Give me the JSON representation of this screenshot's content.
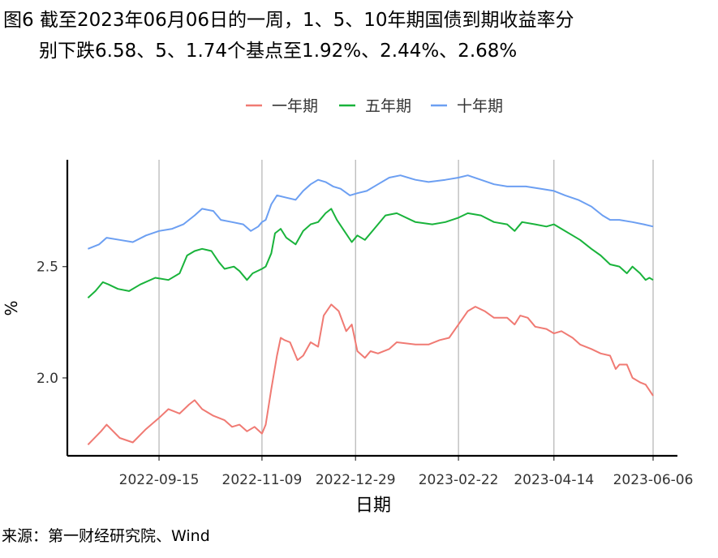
{
  "title_line1": "图6  截至2023年06月06日的一周，1、5、10年期国债到期收益率分",
  "title_line2": "别下跌6.58、5、1.74个基点至1.92%、2.44%、2.68%",
  "source": "来源：第一财经研究院、Wind",
  "colors": {
    "one_year": "#F07A73",
    "five_year": "#19B33B",
    "ten_year": "#6C9FF2",
    "grid": "#b3b3b3"
  },
  "chart_data": {
    "type": "line",
    "xlabel": "日期",
    "ylabel": "%",
    "x_ticks": [
      "2022-09-15",
      "2022-11-09",
      "2022-12-29",
      "2023-02-22",
      "2023-04-14",
      "2023-06-06"
    ],
    "y_ticks": [
      2.0,
      2.5
    ],
    "ylim": [
      1.65,
      2.98
    ],
    "xlim": [
      "2022-07-28",
      "2023-06-19"
    ],
    "grid": "vertical major",
    "legend_position": "top",
    "series": [
      {
        "name": "一年期",
        "color": "#F07A73",
        "points": [
          [
            "2022-08-08",
            1.7
          ],
          [
            "2022-08-15",
            1.76
          ],
          [
            "2022-08-18",
            1.79
          ],
          [
            "2022-08-25",
            1.73
          ],
          [
            "2022-09-01",
            1.71
          ],
          [
            "2022-09-08",
            1.77
          ],
          [
            "2022-09-15",
            1.82
          ],
          [
            "2022-09-20",
            1.86
          ],
          [
            "2022-09-26",
            1.84
          ],
          [
            "2022-10-01",
            1.88
          ],
          [
            "2022-10-04",
            1.9
          ],
          [
            "2022-10-08",
            1.86
          ],
          [
            "2022-10-14",
            1.83
          ],
          [
            "2022-10-20",
            1.81
          ],
          [
            "2022-10-24",
            1.78
          ],
          [
            "2022-10-28",
            1.79
          ],
          [
            "2022-11-01",
            1.76
          ],
          [
            "2022-11-05",
            1.78
          ],
          [
            "2022-11-09",
            1.75
          ],
          [
            "2022-11-11",
            1.79
          ],
          [
            "2022-11-14",
            1.95
          ],
          [
            "2022-11-17",
            2.1
          ],
          [
            "2022-11-19",
            2.18
          ],
          [
            "2022-11-21",
            2.17
          ],
          [
            "2022-11-24",
            2.16
          ],
          [
            "2022-11-28",
            2.08
          ],
          [
            "2022-12-01",
            2.1
          ],
          [
            "2022-12-05",
            2.16
          ],
          [
            "2022-12-09",
            2.14
          ],
          [
            "2022-12-12",
            2.28
          ],
          [
            "2022-12-16",
            2.33
          ],
          [
            "2022-12-20",
            2.3
          ],
          [
            "2022-12-24",
            2.21
          ],
          [
            "2022-12-27",
            2.24
          ],
          [
            "2022-12-30",
            2.12
          ],
          [
            "2023-01-03",
            2.09
          ],
          [
            "2023-01-06",
            2.12
          ],
          [
            "2023-01-10",
            2.11
          ],
          [
            "2023-01-16",
            2.13
          ],
          [
            "2023-01-20",
            2.16
          ],
          [
            "2023-01-30",
            2.15
          ],
          [
            "2023-02-06",
            2.15
          ],
          [
            "2023-02-12",
            2.17
          ],
          [
            "2023-02-17",
            2.18
          ],
          [
            "2023-02-22",
            2.24
          ],
          [
            "2023-02-27",
            2.3
          ],
          [
            "2023-03-03",
            2.32
          ],
          [
            "2023-03-08",
            2.3
          ],
          [
            "2023-03-13",
            2.27
          ],
          [
            "2023-03-20",
            2.27
          ],
          [
            "2023-03-24",
            2.24
          ],
          [
            "2023-03-27",
            2.28
          ],
          [
            "2023-03-31",
            2.27
          ],
          [
            "2023-04-04",
            2.23
          ],
          [
            "2023-04-10",
            2.22
          ],
          [
            "2023-04-14",
            2.2
          ],
          [
            "2023-04-18",
            2.21
          ],
          [
            "2023-04-24",
            2.18
          ],
          [
            "2023-04-28",
            2.15
          ],
          [
            "2023-05-04",
            2.13
          ],
          [
            "2023-05-09",
            2.11
          ],
          [
            "2023-05-14",
            2.1
          ],
          [
            "2023-05-17",
            2.04
          ],
          [
            "2023-05-19",
            2.06
          ],
          [
            "2023-05-23",
            2.06
          ],
          [
            "2023-05-26",
            2.0
          ],
          [
            "2023-05-30",
            1.98
          ],
          [
            "2023-06-02",
            1.97
          ],
          [
            "2023-06-06",
            1.92
          ]
        ]
      },
      {
        "name": "五年期",
        "color": "#19B33B",
        "points": [
          [
            "2022-08-08",
            2.36
          ],
          [
            "2022-08-12",
            2.39
          ],
          [
            "2022-08-16",
            2.43
          ],
          [
            "2022-08-19",
            2.42
          ],
          [
            "2022-08-24",
            2.4
          ],
          [
            "2022-08-30",
            2.39
          ],
          [
            "2022-09-05",
            2.42
          ],
          [
            "2022-09-13",
            2.45
          ],
          [
            "2022-09-20",
            2.44
          ],
          [
            "2022-09-26",
            2.47
          ],
          [
            "2022-09-30",
            2.55
          ],
          [
            "2022-10-04",
            2.57
          ],
          [
            "2022-10-08",
            2.58
          ],
          [
            "2022-10-13",
            2.57
          ],
          [
            "2022-10-17",
            2.52
          ],
          [
            "2022-10-20",
            2.49
          ],
          [
            "2022-10-25",
            2.5
          ],
          [
            "2022-10-28",
            2.48
          ],
          [
            "2022-11-01",
            2.44
          ],
          [
            "2022-11-04",
            2.47
          ],
          [
            "2022-11-09",
            2.49
          ],
          [
            "2022-11-11",
            2.5
          ],
          [
            "2022-11-14",
            2.56
          ],
          [
            "2022-11-16",
            2.65
          ],
          [
            "2022-11-19",
            2.67
          ],
          [
            "2022-11-22",
            2.63
          ],
          [
            "2022-11-27",
            2.6
          ],
          [
            "2022-12-01",
            2.66
          ],
          [
            "2022-12-05",
            2.69
          ],
          [
            "2022-12-09",
            2.7
          ],
          [
            "2022-12-13",
            2.74
          ],
          [
            "2022-12-16",
            2.76
          ],
          [
            "2022-12-19",
            2.71
          ],
          [
            "2022-12-23",
            2.66
          ],
          [
            "2022-12-27",
            2.61
          ],
          [
            "2022-12-30",
            2.64
          ],
          [
            "2023-01-03",
            2.62
          ],
          [
            "2023-01-08",
            2.67
          ],
          [
            "2023-01-14",
            2.73
          ],
          [
            "2023-01-20",
            2.74
          ],
          [
            "2023-01-30",
            2.7
          ],
          [
            "2023-02-08",
            2.69
          ],
          [
            "2023-02-15",
            2.7
          ],
          [
            "2023-02-22",
            2.72
          ],
          [
            "2023-02-27",
            2.74
          ],
          [
            "2023-03-06",
            2.73
          ],
          [
            "2023-03-13",
            2.7
          ],
          [
            "2023-03-20",
            2.69
          ],
          [
            "2023-03-24",
            2.66
          ],
          [
            "2023-03-28",
            2.7
          ],
          [
            "2023-04-04",
            2.69
          ],
          [
            "2023-04-10",
            2.68
          ],
          [
            "2023-04-14",
            2.69
          ],
          [
            "2023-04-18",
            2.67
          ],
          [
            "2023-04-24",
            2.64
          ],
          [
            "2023-04-28",
            2.62
          ],
          [
            "2023-05-04",
            2.58
          ],
          [
            "2023-05-09",
            2.55
          ],
          [
            "2023-05-14",
            2.51
          ],
          [
            "2023-05-19",
            2.5
          ],
          [
            "2023-05-23",
            2.47
          ],
          [
            "2023-05-26",
            2.5
          ],
          [
            "2023-05-30",
            2.47
          ],
          [
            "2023-06-02",
            2.44
          ],
          [
            "2023-06-04",
            2.45
          ],
          [
            "2023-06-06",
            2.44
          ]
        ]
      },
      {
        "name": "十年期",
        "color": "#6C9FF2",
        "points": [
          [
            "2022-08-08",
            2.58
          ],
          [
            "2022-08-14",
            2.6
          ],
          [
            "2022-08-18",
            2.63
          ],
          [
            "2022-08-25",
            2.62
          ],
          [
            "2022-09-01",
            2.61
          ],
          [
            "2022-09-08",
            2.64
          ],
          [
            "2022-09-15",
            2.66
          ],
          [
            "2022-09-22",
            2.67
          ],
          [
            "2022-09-28",
            2.69
          ],
          [
            "2022-10-04",
            2.73
          ],
          [
            "2022-10-08",
            2.76
          ],
          [
            "2022-10-14",
            2.75
          ],
          [
            "2022-10-18",
            2.71
          ],
          [
            "2022-10-24",
            2.7
          ],
          [
            "2022-10-30",
            2.69
          ],
          [
            "2022-11-03",
            2.66
          ],
          [
            "2022-11-07",
            2.68
          ],
          [
            "2022-11-09",
            2.7
          ],
          [
            "2022-11-11",
            2.71
          ],
          [
            "2022-11-14",
            2.78
          ],
          [
            "2022-11-17",
            2.82
          ],
          [
            "2022-11-22",
            2.81
          ],
          [
            "2022-11-27",
            2.8
          ],
          [
            "2022-12-01",
            2.84
          ],
          [
            "2022-12-05",
            2.87
          ],
          [
            "2022-12-09",
            2.89
          ],
          [
            "2022-12-13",
            2.88
          ],
          [
            "2022-12-17",
            2.86
          ],
          [
            "2022-12-21",
            2.85
          ],
          [
            "2022-12-26",
            2.82
          ],
          [
            "2022-12-30",
            2.83
          ],
          [
            "2023-01-04",
            2.84
          ],
          [
            "2023-01-10",
            2.87
          ],
          [
            "2023-01-16",
            2.9
          ],
          [
            "2023-01-22",
            2.91
          ],
          [
            "2023-01-30",
            2.89
          ],
          [
            "2023-02-06",
            2.88
          ],
          [
            "2023-02-15",
            2.89
          ],
          [
            "2023-02-22",
            2.9
          ],
          [
            "2023-02-27",
            2.91
          ],
          [
            "2023-03-06",
            2.89
          ],
          [
            "2023-03-13",
            2.87
          ],
          [
            "2023-03-20",
            2.86
          ],
          [
            "2023-03-30",
            2.86
          ],
          [
            "2023-04-07",
            2.85
          ],
          [
            "2023-04-14",
            2.84
          ],
          [
            "2023-04-20",
            2.82
          ],
          [
            "2023-04-27",
            2.8
          ],
          [
            "2023-05-04",
            2.77
          ],
          [
            "2023-05-10",
            2.73
          ],
          [
            "2023-05-14",
            2.71
          ],
          [
            "2023-05-19",
            2.71
          ],
          [
            "2023-05-26",
            2.7
          ],
          [
            "2023-06-01",
            2.69
          ],
          [
            "2023-06-06",
            2.68
          ]
        ]
      }
    ]
  }
}
